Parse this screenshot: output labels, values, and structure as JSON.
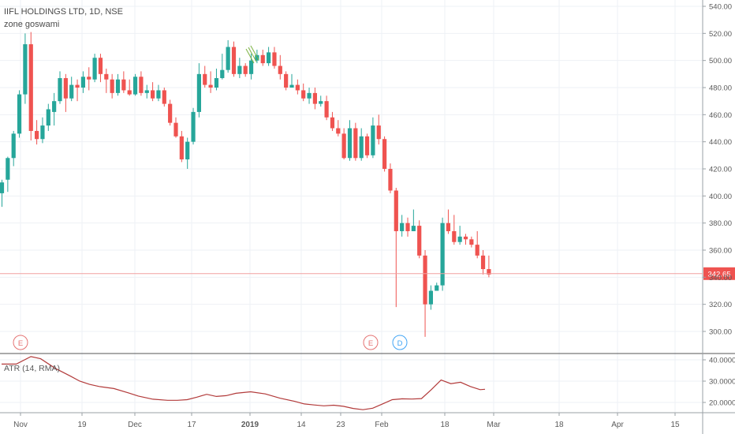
{
  "header": {
    "symbol": "IIFL HOLDINGS LTD, 1D, NSE",
    "author": "zone goswami"
  },
  "colors": {
    "up": "#26a69a",
    "down": "#ef5350",
    "atr": "#b23a3a",
    "price_line": "#f0a0a0",
    "price_tag": "#ef5350",
    "grid": "#eef1f5",
    "earnings": "#e57373",
    "dividend": "#42a5f5"
  },
  "chart_data": [
    {
      "type": "candlestick",
      "title": "IIFL HOLDINGS LTD, 1D, NSE",
      "x_ticks": [
        "Nov",
        "19",
        "Dec",
        "17",
        "2019",
        "14",
        "23",
        "Feb",
        "18",
        "Mar",
        "18",
        "Apr",
        "15"
      ],
      "y_ticks": [
        "540.00",
        "520.00",
        "500.00",
        "480.00",
        "460.00",
        "440.00",
        "420.00",
        "400.00",
        "380.00",
        "360.00",
        "340.00",
        "320.00",
        "300.00"
      ],
      "ylim": [
        290,
        545
      ],
      "last_price": "342.65",
      "grid": true,
      "ohlc": [
        [
          402,
          410,
          392,
          412,
          393
        ],
        [
          412,
          428,
          403,
          429,
          404
        ],
        [
          428,
          446,
          422,
          448,
          423
        ],
        [
          446,
          475,
          443,
          478,
          444
        ],
        [
          475,
          512,
          468,
          520,
          470
        ],
        [
          512,
          448,
          441,
          521,
          444
        ],
        [
          448,
          442,
          438,
          456,
          439
        ],
        [
          442,
          452,
          439,
          458,
          440
        ],
        [
          452,
          464,
          448,
          468,
          449
        ],
        [
          462,
          470,
          452,
          476,
          453
        ],
        [
          470,
          487,
          468,
          492,
          469
        ],
        [
          487,
          472,
          462,
          490,
          462
        ],
        [
          472,
          482,
          470,
          488,
          470
        ],
        [
          482,
          480,
          470,
          486,
          472
        ],
        [
          480,
          488,
          476,
          492,
          478
        ],
        [
          488,
          486,
          478,
          495,
          480
        ],
        [
          486,
          502,
          484,
          505,
          486
        ],
        [
          502,
          490,
          484,
          505,
          486
        ],
        [
          490,
          486,
          476,
          494,
          478
        ],
        [
          486,
          476,
          472,
          490,
          472
        ],
        [
          476,
          486,
          474,
          490,
          474
        ],
        [
          486,
          478,
          476,
          492,
          477
        ],
        [
          478,
          475,
          474,
          486,
          474
        ],
        [
          475,
          488,
          474,
          490,
          476
        ],
        [
          488,
          476,
          474,
          492,
          475
        ],
        [
          476,
          478,
          472,
          482,
          474
        ],
        [
          478,
          472,
          470,
          484,
          471
        ],
        [
          472,
          478,
          470,
          482,
          471
        ],
        [
          478,
          468,
          466,
          480,
          467
        ],
        [
          468,
          454,
          452,
          471,
          453
        ],
        [
          454,
          444,
          443,
          458,
          443
        ],
        [
          444,
          427,
          425,
          448,
          425
        ],
        [
          427,
          440,
          420,
          443,
          420
        ],
        [
          440,
          462,
          438,
          465,
          439
        ],
        [
          462,
          490,
          458,
          498,
          459
        ],
        [
          490,
          482,
          480,
          496,
          480
        ],
        [
          482,
          480,
          476,
          492,
          476
        ],
        [
          480,
          487,
          478,
          494,
          479
        ],
        [
          487,
          493,
          486,
          505,
          486
        ],
        [
          493,
          510,
          491,
          515,
          491
        ],
        [
          510,
          490,
          488,
          514,
          489
        ],
        [
          490,
          496,
          487,
          502,
          488
        ],
        [
          496,
          490,
          488,
          498,
          489
        ],
        [
          490,
          500,
          486,
          505,
          487
        ],
        [
          500,
          504,
          498,
          508,
          499
        ],
        [
          504,
          498,
          496,
          508,
          497
        ],
        [
          498,
          506,
          496,
          510,
          497
        ],
        [
          506,
          496,
          494,
          510,
          494
        ],
        [
          496,
          490,
          486,
          504,
          486
        ],
        [
          490,
          480,
          478,
          492,
          478
        ],
        [
          480,
          482,
          480,
          490,
          480
        ],
        [
          482,
          478,
          475,
          486,
          476
        ],
        [
          478,
          472,
          470,
          483,
          470
        ],
        [
          472,
          476,
          468,
          480,
          468
        ],
        [
          476,
          468,
          464,
          480,
          465
        ],
        [
          468,
          470,
          466,
          474,
          466
        ],
        [
          470,
          458,
          456,
          474,
          456
        ],
        [
          458,
          450,
          448,
          462,
          449
        ],
        [
          450,
          446,
          444,
          456,
          444
        ],
        [
          446,
          428,
          427,
          450,
          428
        ],
        [
          428,
          450,
          426,
          456,
          427
        ],
        [
          450,
          428,
          426,
          454,
          427
        ],
        [
          428,
          444,
          426,
          450,
          427
        ],
        [
          444,
          430,
          428,
          446,
          429
        ],
        [
          430,
          452,
          428,
          458,
          429
        ],
        [
          452,
          442,
          438,
          460,
          439
        ],
        [
          442,
          420,
          418,
          444,
          419
        ],
        [
          420,
          404,
          402,
          424,
          403
        ],
        [
          404,
          374,
          318,
          406,
          319
        ],
        [
          374,
          380,
          370,
          386,
          371
        ],
        [
          380,
          374,
          370,
          384,
          371
        ],
        [
          374,
          378,
          374,
          390,
          374
        ],
        [
          378,
          356,
          354,
          382,
          355
        ],
        [
          356,
          320,
          296,
          360,
          297
        ],
        [
          320,
          330,
          316,
          334,
          317
        ],
        [
          330,
          334,
          330,
          336,
          331
        ],
        [
          334,
          380,
          330,
          384,
          331
        ],
        [
          380,
          374,
          372,
          390,
          373
        ],
        [
          374,
          366,
          364,
          386,
          365
        ],
        [
          366,
          370,
          364,
          378,
          364
        ],
        [
          370,
          368,
          364,
          372,
          365
        ],
        [
          368,
          364,
          362,
          370,
          363
        ],
        [
          364,
          356,
          354,
          374,
          355
        ],
        [
          356,
          346,
          342,
          360,
          343
        ],
        [
          346,
          342,
          340,
          356,
          341
        ]
      ]
    },
    {
      "type": "line",
      "title": "ATR (14, RMA)",
      "y_ticks": [
        "40.0000",
        "30.0000",
        "20.0000"
      ],
      "ylim": [
        16,
        42
      ],
      "x": [
        0,
        3,
        6,
        8,
        11,
        14,
        16,
        18,
        20,
        23,
        26,
        28,
        31,
        34,
        36,
        38,
        40,
        42,
        44,
        46,
        48,
        51,
        54,
        57,
        60,
        62,
        64,
        66,
        68,
        70,
        72,
        74,
        76,
        78,
        80,
        82,
        84,
        86,
        88,
        90,
        92,
        94,
        96,
        98,
        99
      ],
      "values": [
        38,
        38,
        41.5,
        40.5,
        36,
        32.5,
        30,
        28.5,
        27.5,
        26.5,
        24.5,
        23,
        21.5,
        21,
        21,
        21.3,
        22.5,
        23.8,
        22.8,
        23.2,
        24.3,
        25,
        24,
        22,
        20.5,
        19.3,
        18.8,
        18.4,
        18.7,
        18.2,
        17.2,
        16.6,
        17.3,
        19.3,
        21.3,
        21.7,
        21.6,
        21.8,
        26,
        30.5,
        28.8,
        29.5,
        27.5,
        26,
        26.2
      ]
    }
  ],
  "events": [
    {
      "label": "E",
      "kind": "earnings"
    },
    {
      "label": "E",
      "kind": "earnings"
    },
    {
      "label": "D",
      "kind": "dividend"
    }
  ]
}
